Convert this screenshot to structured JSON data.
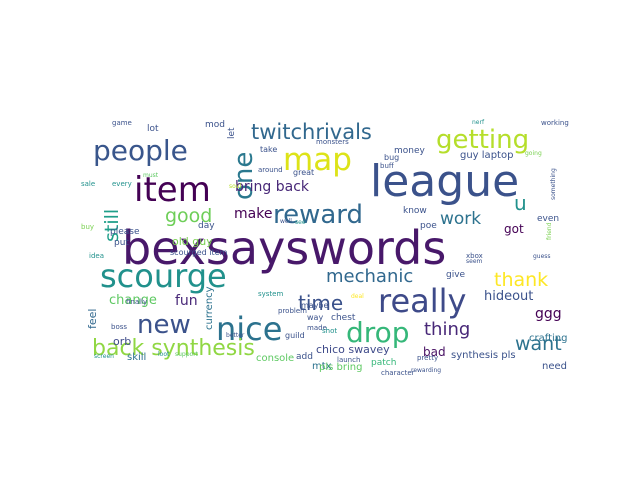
{
  "words": [
    {
      "text": "bexsayswords",
      "color": "#48186a"
    },
    {
      "text": "league",
      "color": "#3b528b"
    },
    {
      "text": "scourge",
      "color": "#21918c"
    },
    {
      "text": "really",
      "color": "#3e4a89"
    },
    {
      "text": "item",
      "color": "#440154"
    },
    {
      "text": "nice",
      "color": "#2c728e"
    },
    {
      "text": "map",
      "color": "#dde318"
    },
    {
      "text": "one",
      "color": "#2a788e"
    },
    {
      "text": "people",
      "color": "#39568c"
    },
    {
      "text": "getting",
      "color": "#b5de2b"
    },
    {
      "text": "reward",
      "color": "#31688e"
    },
    {
      "text": "drop",
      "color": "#35b779"
    },
    {
      "text": "back synthesis",
      "color": "#90d743"
    },
    {
      "text": "new",
      "color": "#3b528b"
    },
    {
      "text": "twitchrivals",
      "color": "#31688e"
    },
    {
      "text": "time",
      "color": "#3b528b"
    },
    {
      "text": "good",
      "color": "#6ece58"
    },
    {
      "text": "still",
      "color": "#1f9e89"
    },
    {
      "text": "mechanic",
      "color": "#31688e"
    },
    {
      "text": "thank",
      "color": "#fde725"
    },
    {
      "text": "want",
      "color": "#2c728e"
    },
    {
      "text": "work",
      "color": "#2c728e"
    },
    {
      "text": "bring back",
      "color": "#482878"
    },
    {
      "text": "thing",
      "color": "#482878"
    },
    {
      "text": "u",
      "color": "#21918c"
    },
    {
      "text": "make",
      "color": "#440154"
    },
    {
      "text": "fun",
      "color": "#482878"
    },
    {
      "text": "change",
      "color": "#5ec962"
    },
    {
      "text": "hideout",
      "color": "#3b528b"
    },
    {
      "text": "got",
      "color": "#440154"
    },
    {
      "text": "ggg",
      "color": "#440154"
    },
    {
      "text": "bad",
      "color": "#471063"
    },
    {
      "text": "chico swavey",
      "color": "#3e4a89"
    },
    {
      "text": "feel",
      "color": "#31688e"
    },
    {
      "text": "orb",
      "color": "#3e4a89"
    },
    {
      "text": "crafting",
      "color": "#2c728e"
    },
    {
      "text": "synthesis pls",
      "color": "#3b528b"
    },
    {
      "text": "old guy",
      "color": "#7ad151"
    },
    {
      "text": "guy laptop",
      "color": "#3b528b"
    },
    {
      "text": "mtx",
      "color": "#2c728e"
    },
    {
      "text": "currency",
      "color": "#2c728e"
    },
    {
      "text": "pls bring",
      "color": "#5ec962"
    },
    {
      "text": "console",
      "color": "#5ec962"
    },
    {
      "text": "skill",
      "color": "#2c728e"
    },
    {
      "text": "add",
      "color": "#3b528b"
    },
    {
      "text": "need",
      "color": "#3b528b"
    },
    {
      "text": "lot",
      "color": "#3b528b"
    },
    {
      "text": "mod",
      "color": "#3b528b"
    },
    {
      "text": "put",
      "color": "#3b528b"
    },
    {
      "text": "please",
      "color": "#3b528b"
    },
    {
      "text": "money",
      "color": "#3b528b"
    },
    {
      "text": "bug",
      "color": "#3b528b"
    },
    {
      "text": "even",
      "color": "#3b528b"
    },
    {
      "text": "know",
      "color": "#3b528b"
    },
    {
      "text": "poe",
      "color": "#3b528b"
    },
    {
      "text": "give",
      "color": "#3b528b"
    },
    {
      "text": "chest",
      "color": "#3b528b"
    },
    {
      "text": "patch",
      "color": "#35b779"
    },
    {
      "text": "day",
      "color": "#3b528b"
    },
    {
      "text": "take",
      "color": "#3b528b"
    },
    {
      "text": "scourged item",
      "color": "#3b528b"
    },
    {
      "text": "let",
      "color": "#3b528b"
    },
    {
      "text": "great",
      "color": "#3b528b"
    },
    {
      "text": "around",
      "color": "#3b528b"
    },
    {
      "text": "maybe",
      "color": "#3b528b"
    },
    {
      "text": "way",
      "color": "#3b528b"
    },
    {
      "text": "guild",
      "color": "#3b528b"
    },
    {
      "text": "system",
      "color": "#21918c"
    },
    {
      "text": "problem",
      "color": "#3b528b"
    },
    {
      "text": "made",
      "color": "#3b528b"
    },
    {
      "text": "shot",
      "color": "#21918c"
    },
    {
      "text": "launch",
      "color": "#3b528b"
    },
    {
      "text": "pretty",
      "color": "#3b528b"
    },
    {
      "text": "character",
      "color": "#3b528b"
    },
    {
      "text": "rewarding",
      "color": "#3b528b"
    },
    {
      "text": "game",
      "color": "#3b528b"
    },
    {
      "text": "finally",
      "color": "#3b528b"
    },
    {
      "text": "sale",
      "color": "#21918c"
    },
    {
      "text": "every",
      "color": "#21918c"
    },
    {
      "text": "buy",
      "color": "#7ad151"
    },
    {
      "text": "idea",
      "color": "#21918c"
    },
    {
      "text": "boss",
      "color": "#3b528b"
    },
    {
      "text": "screen",
      "color": "#21918c"
    },
    {
      "text": "loot",
      "color": "#21918c"
    },
    {
      "text": "support",
      "color": "#5ec962"
    },
    {
      "text": "better",
      "color": "#3b528b"
    },
    {
      "text": "well",
      "color": "#3b528b"
    },
    {
      "text": "see",
      "color": "#21918c"
    },
    {
      "text": "monsters",
      "color": "#3b528b"
    },
    {
      "text": "buff",
      "color": "#3b528b"
    },
    {
      "text": "nerf",
      "color": "#21918c"
    },
    {
      "text": "working",
      "color": "#3b528b"
    },
    {
      "text": "going",
      "color": "#7ad151"
    },
    {
      "text": "something",
      "color": "#3b528b"
    },
    {
      "text": "friend",
      "color": "#7ad151"
    },
    {
      "text": "xbox",
      "color": "#3b528b"
    },
    {
      "text": "seem",
      "color": "#3b528b"
    },
    {
      "text": "guess",
      "color": "#3b528b"
    },
    {
      "text": "must",
      "color": "#5ec962"
    },
    {
      "text": "soul",
      "color": "#b5de2b"
    },
    {
      "text": "deal",
      "color": "#fde725"
    }
  ]
}
